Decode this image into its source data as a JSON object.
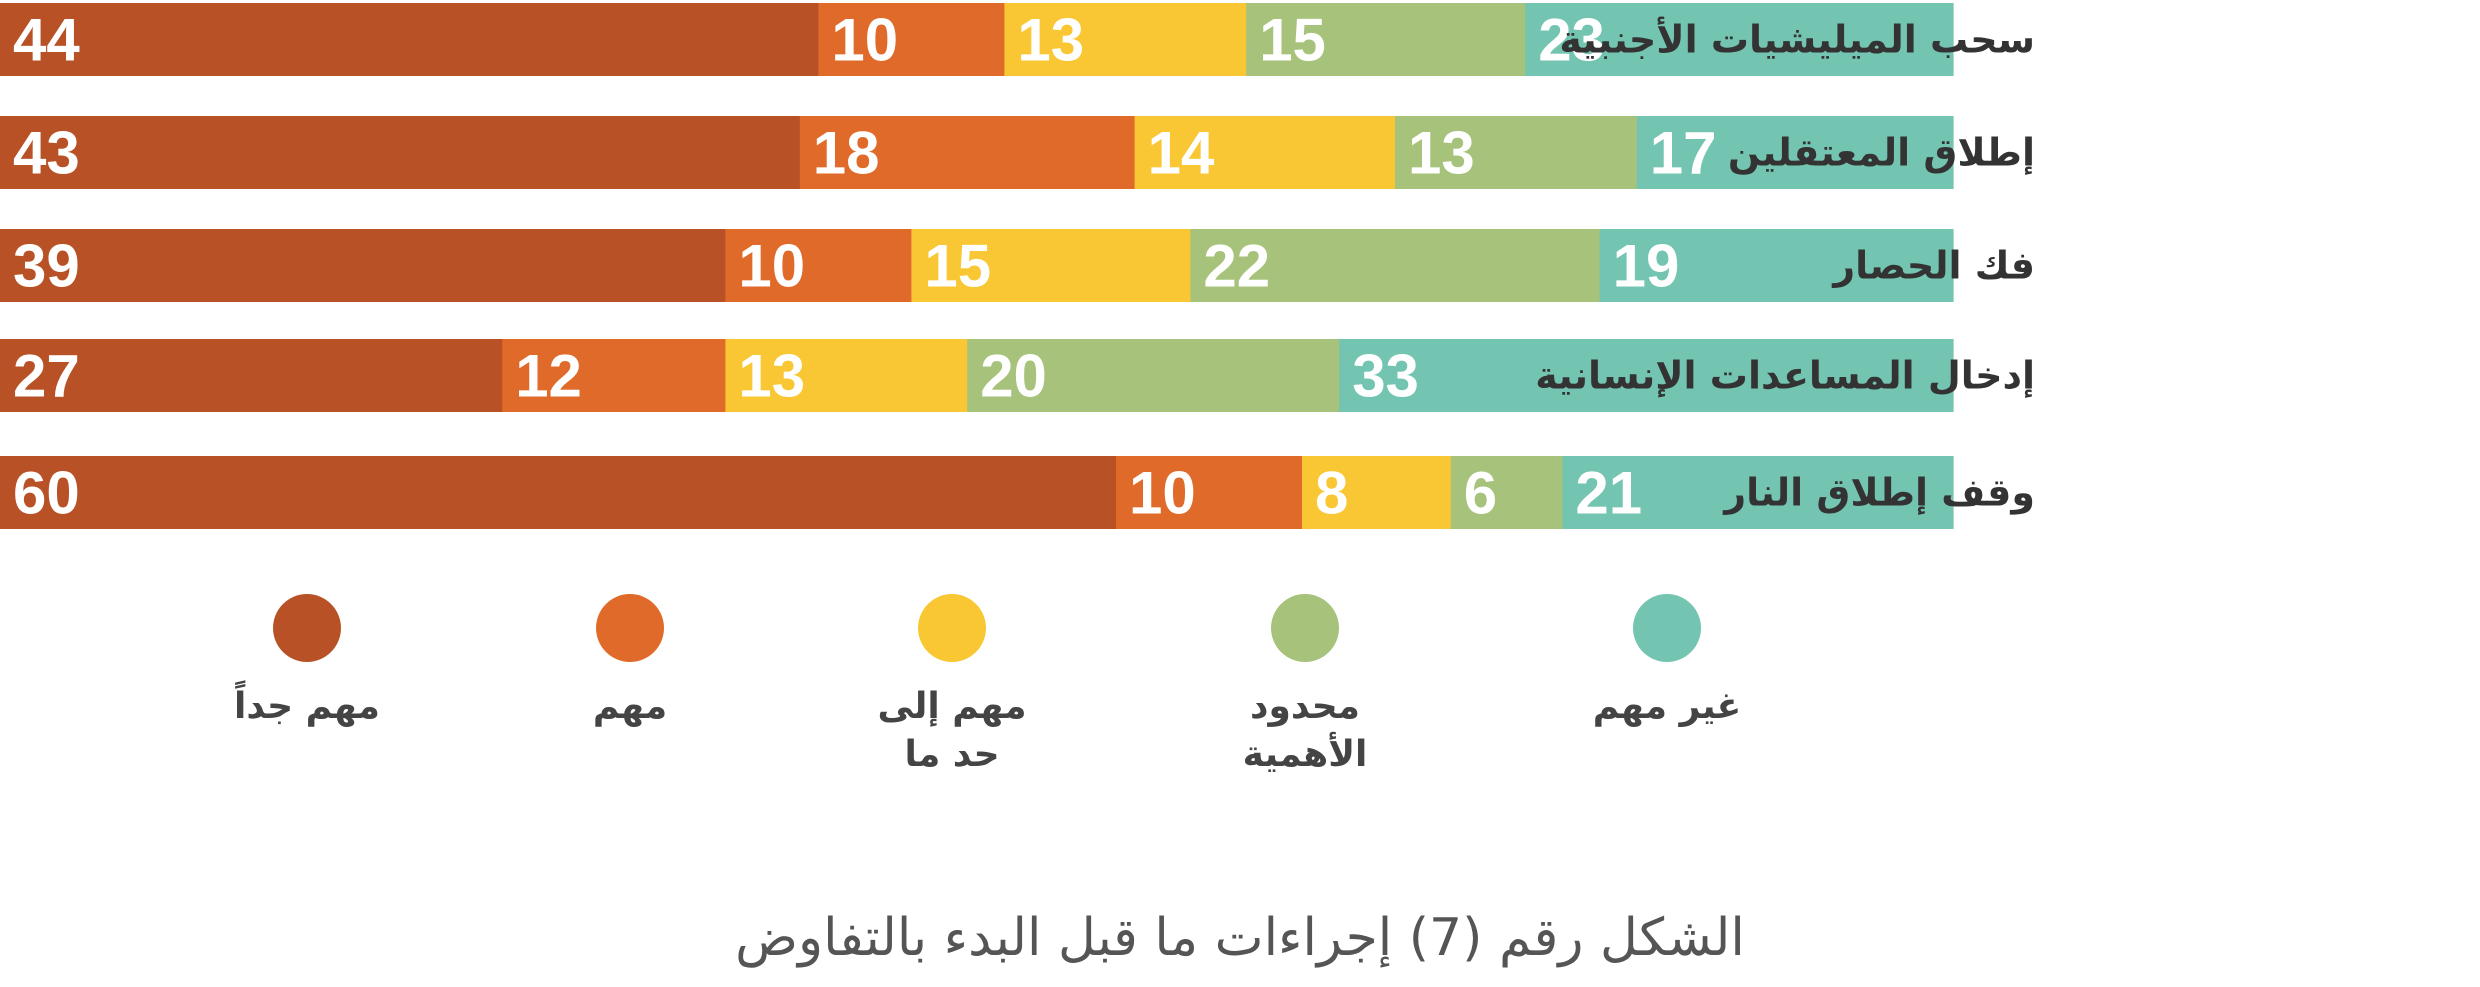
{
  "chart_data": {
    "type": "bar",
    "orientation": "horizontal",
    "stacked": true,
    "title": "الشكل رقم (7) إجراءات ما قبل البدء بالتفاوض",
    "categories": [
      "سحب الميليشيات الأجنبية",
      "إطلاق المعتقلين",
      "فك الحصار",
      "إدخال المساعدات الإنسانية",
      "وقف إطلاق النار"
    ],
    "series": [
      {
        "name": "مهم جداً",
        "lines": [
          "مهم جداً"
        ],
        "color": "#B85226",
        "values": [
          44,
          43,
          39,
          27,
          60
        ]
      },
      {
        "name": "مهم",
        "lines": [
          "مهم"
        ],
        "color": "#E06A29",
        "values": [
          10,
          18,
          10,
          12,
          10
        ]
      },
      {
        "name": "مهم إلى حد ما",
        "lines": [
          "مهم إلى",
          "حد ما"
        ],
        "color": "#F9C733",
        "values": [
          13,
          14,
          15,
          13,
          8
        ]
      },
      {
        "name": "محدود الأهمية",
        "lines": [
          "محدود",
          "الأهمية"
        ],
        "color": "#A6C27B",
        "values": [
          15,
          13,
          22,
          20,
          6
        ]
      },
      {
        "name": "غير مهم",
        "lines": [
          "غير مهم"
        ],
        "color": "#74C4B2",
        "values": [
          23,
          17,
          19,
          33,
          21
        ]
      }
    ],
    "value_labels": true,
    "legend_position": "bottom",
    "grid": false
  }
}
